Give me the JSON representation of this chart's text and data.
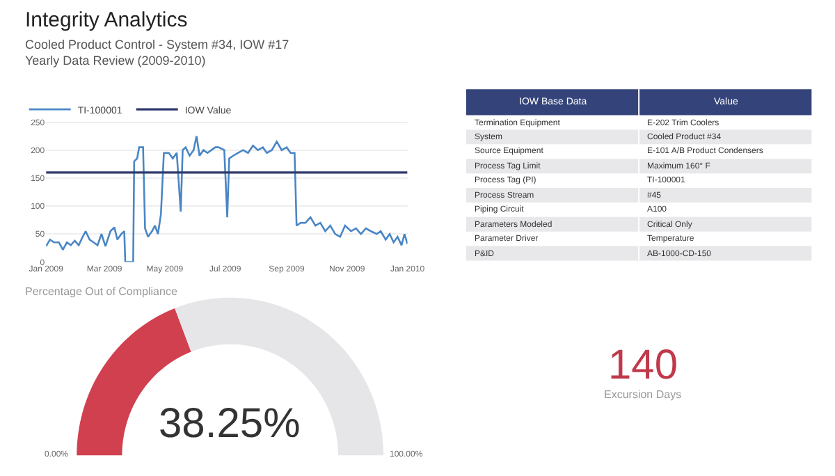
{
  "chart_data": [
    {
      "type": "line",
      "title": "Integrity Analytics",
      "subtitle": "Cooled Product Control - System #34, IOW #17\nYearly Data Review (2009-2010)",
      "x": [
        "2009-01-01",
        "2009-01-05",
        "2009-01-09",
        "2009-01-14",
        "2009-01-18",
        "2009-01-22",
        "2009-01-26",
        "2009-01-30",
        "2009-02-03",
        "2009-02-07",
        "2009-02-10",
        "2009-02-14",
        "2009-02-18",
        "2009-02-22",
        "2009-02-26",
        "2009-03-02",
        "2009-03-07",
        "2009-03-11",
        "2009-03-14",
        "2009-03-18",
        "2009-03-21",
        "2009-03-22",
        "2009-03-30",
        "2009-03-31",
        "2009-04-03",
        "2009-04-05",
        "2009-04-09",
        "2009-04-11",
        "2009-04-14",
        "2009-04-18",
        "2009-04-21",
        "2009-04-24",
        "2009-04-27",
        "2009-04-30",
        "2009-05-05",
        "2009-05-09",
        "2009-05-13",
        "2009-05-17",
        "2009-05-19",
        "2009-05-22",
        "2009-05-26",
        "2009-05-30",
        "2009-06-02",
        "2009-06-05",
        "2009-06-09",
        "2009-06-13",
        "2009-06-17",
        "2009-06-21",
        "2009-06-24",
        "2009-06-30",
        "2009-07-03",
        "2009-07-05",
        "2009-07-09",
        "2009-07-14",
        "2009-07-19",
        "2009-07-24",
        "2009-07-29",
        "2009-08-03",
        "2009-08-08",
        "2009-08-12",
        "2009-08-17",
        "2009-08-22",
        "2009-08-27",
        "2009-09-01",
        "2009-09-05",
        "2009-09-09",
        "2009-09-11",
        "2009-09-15",
        "2009-09-20",
        "2009-09-25",
        "2009-09-30",
        "2009-10-05",
        "2009-10-10",
        "2009-10-15",
        "2009-10-20",
        "2009-10-25",
        "2009-10-30",
        "2009-11-05",
        "2009-11-10",
        "2009-11-15",
        "2009-11-20",
        "2009-11-25",
        "2009-12-01",
        "2009-12-05",
        "2009-12-10",
        "2009-12-14",
        "2009-12-18",
        "2009-12-22",
        "2009-12-26",
        "2009-12-29",
        "2010-01-01"
      ],
      "series": [
        {
          "name": "TI-100001",
          "color": "#4a86c5",
          "values": [
            28,
            40,
            35,
            35,
            22,
            35,
            30,
            38,
            30,
            45,
            55,
            40,
            35,
            30,
            50,
            28,
            55,
            62,
            40,
            50,
            55,
            0,
            0,
            180,
            185,
            205,
            205,
            60,
            45,
            55,
            65,
            50,
            85,
            195,
            195,
            185,
            195,
            90,
            200,
            205,
            190,
            200,
            225,
            190,
            200,
            195,
            200,
            205,
            205,
            200,
            80,
            185,
            190,
            195,
            200,
            195,
            208,
            200,
            205,
            195,
            200,
            215,
            200,
            205,
            195,
            195,
            65,
            70,
            70,
            80,
            65,
            70,
            55,
            65,
            50,
            45,
            65,
            55,
            60,
            50,
            60,
            55,
            50,
            55,
            40,
            50,
            35,
            45,
            30,
            50,
            32
          ]
        },
        {
          "name": "IOW Value",
          "type": "line",
          "color": "#2e3a6b",
          "x": [
            "2009-01-01",
            "2010-01-01"
          ],
          "values": [
            160,
            160
          ]
        }
      ],
      "xlim": [
        "2009-01-01",
        "2010-01-01"
      ],
      "xticks": [
        {
          "value": "2009-01-01",
          "label": "Jan 2009"
        },
        {
          "value": "2009-03-01",
          "label": "Mar 2009"
        },
        {
          "value": "2009-05-01",
          "label": "May 2009"
        },
        {
          "value": "2009-07-01",
          "label": "Jul 2009"
        },
        {
          "value": "2009-09-01",
          "label": "Sep 2009"
        },
        {
          "value": "2009-11-01",
          "label": "Nov 2009"
        },
        {
          "value": "2010-01-01",
          "label": "Jan 2010"
        }
      ],
      "ylim": [
        0,
        255
      ],
      "yticks": [
        0,
        50,
        100,
        150,
        200,
        250
      ],
      "grid": "y",
      "legend": "top left"
    },
    {
      "type": "other",
      "categories": [
        "IOW Base Data",
        "Value"
      ],
      "cell_labels": [
        [
          "Termination Equipment",
          "E-202 Trim Coolers"
        ],
        [
          "System",
          "Cooled Product #34"
        ],
        [
          "Source Equipment",
          "E-101 A/B Product Condensers"
        ],
        [
          "Process Tag Limit",
          "Maximum 160° F"
        ],
        [
          "Process Tag (PI)",
          "TI-100001"
        ],
        [
          "Process Stream",
          "#45"
        ],
        [
          "Piping Circuit",
          "A100"
        ],
        [
          "Parameters Modeled",
          "Critical Only"
        ],
        [
          "Parameter Driver",
          "Temperature"
        ],
        [
          "P&ID",
          "AB-1000-CD-150"
        ]
      ]
    },
    {
      "type": "donut",
      "title": "Percentage Out of Compliance",
      "categories": [
        null,
        null
      ],
      "values": [
        38.25,
        61.75
      ],
      "colors": [
        "#d0404f",
        "#e6e5e8"
      ],
      "annotations": [
        "38.25%",
        "0.00%",
        "100.00%"
      ]
    },
    {
      "type": "other",
      "values": [
        140
      ],
      "data_labels": true,
      "color": "#c0394b",
      "categories": [
        "Excursion Days"
      ]
    }
  ]
}
